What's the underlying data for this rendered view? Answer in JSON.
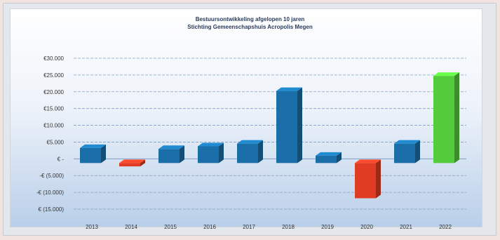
{
  "colors": {
    "positive": "#1a6fa8",
    "negative": "#e03c24",
    "last_year": "#55cc3c",
    "grid": "#7f9fc4"
  },
  "chart_data": {
    "type": "bar",
    "title": "Bestuursontwikkeling afgelopen 10 jaren",
    "subtitle": "Stichting Gemeenschapshuis Acropolis Megen",
    "categories": [
      "2013",
      "2014",
      "2015",
      "2016",
      "2017",
      "2018",
      "2019",
      "2020",
      "2021",
      "2022"
    ],
    "values": [
      4500,
      -1000,
      4200,
      5000,
      5800,
      21500,
      2200,
      -10500,
      5800,
      26000
    ],
    "ylim": [
      -15000,
      30000
    ],
    "yticks": [
      30000,
      25000,
      20000,
      15000,
      10000,
      5000,
      0,
      -5000,
      -10000,
      -15000
    ],
    "ytick_labels": [
      "€30.000",
      "€25.000",
      "€20.000",
      "€15.000",
      "€10.000",
      "€5.000",
      "€ -",
      "-€ (5.000)",
      "-€ (10.000)",
      "€ (15.000)"
    ],
    "xlabel": "",
    "ylabel": "",
    "grid": true,
    "legend": "none"
  }
}
